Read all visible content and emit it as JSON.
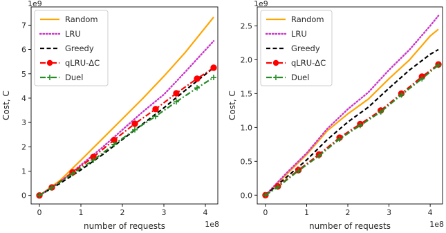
{
  "chart_data": [
    {
      "type": "line",
      "exponent_y": "1e9",
      "exponent_x": "1e8",
      "xlabel": "number of requests",
      "ylabel": "Cost, C",
      "xlim": [
        -0.2,
        4.3
      ],
      "ylim": [
        -0.35,
        7.75
      ],
      "xticks": [
        0,
        1,
        2,
        3,
        4
      ],
      "yticks": [
        0,
        1,
        2,
        3,
        4,
        5,
        6,
        7
      ],
      "legend_position": "top-left",
      "series": [
        {
          "name": "Random",
          "color": "#FFA500",
          "style": "solid",
          "marker": "none",
          "x": [
            0,
            0.5,
            1.0,
            1.5,
            2.0,
            2.5,
            3.0,
            3.5,
            4.2
          ],
          "y": [
            0,
            0.62,
            1.45,
            2.3,
            3.15,
            4.0,
            4.9,
            5.85,
            7.33
          ]
        },
        {
          "name": "LRU",
          "color": "#CC33CC",
          "style": "dotted",
          "marker": "none",
          "x": [
            0,
            0.5,
            1.0,
            1.5,
            2.0,
            2.5,
            3.0,
            3.5,
            4.2
          ],
          "y": [
            0,
            0.55,
            1.25,
            1.95,
            2.7,
            3.45,
            4.15,
            5.05,
            6.35
          ]
        },
        {
          "name": "Greedy",
          "color": "#000000",
          "style": "dashed",
          "marker": "none",
          "x": [
            0,
            0.5,
            1.0,
            1.5,
            2.0,
            2.5,
            3.0,
            3.5,
            4.2
          ],
          "y": [
            0,
            0.5,
            1.05,
            1.65,
            2.3,
            2.95,
            3.6,
            4.3,
            5.25
          ]
        },
        {
          "name": "qLRU-ΔC",
          "color": "#FF0000",
          "style": "dashdot",
          "marker": "circle",
          "x": [
            0,
            0.3,
            0.8,
            1.3,
            1.8,
            2.3,
            2.8,
            3.3,
            3.8,
            4.2
          ],
          "y": [
            0,
            0.33,
            0.95,
            1.58,
            2.28,
            2.95,
            3.55,
            4.2,
            4.8,
            5.25
          ]
        },
        {
          "name": "Duel",
          "color": "#228B22",
          "style": "dashdot",
          "marker": "plus",
          "x": [
            0,
            0.3,
            0.8,
            1.3,
            1.8,
            2.3,
            2.8,
            3.3,
            3.8,
            4.2
          ],
          "y": [
            0,
            0.32,
            0.9,
            1.45,
            2.1,
            2.7,
            3.25,
            3.85,
            4.42,
            4.85
          ]
        }
      ]
    },
    {
      "type": "line",
      "exponent_y": "1e9",
      "exponent_x": "1e8",
      "xlabel": "number of requests",
      "ylabel": "Cost, C",
      "xlim": [
        -0.2,
        4.3
      ],
      "ylim": [
        -0.13,
        2.78
      ],
      "xticks": [
        0,
        1,
        2,
        3,
        4
      ],
      "yticks": [
        0.0,
        0.5,
        1.0,
        1.5,
        2.0,
        2.5
      ],
      "ytick_labels": [
        "0.0",
        "0.5",
        "1.0",
        "1.5",
        "2.0",
        "2.5"
      ],
      "legend_position": "top-left",
      "series": [
        {
          "name": "Random",
          "color": "#FFA500",
          "style": "solid",
          "marker": "none",
          "x": [
            0,
            0.5,
            1.0,
            1.5,
            2.0,
            2.5,
            3.0,
            3.5,
            4.0,
            4.2
          ],
          "y": [
            0,
            0.3,
            0.6,
            0.95,
            1.2,
            1.42,
            1.72,
            2.0,
            2.35,
            2.45
          ]
        },
        {
          "name": "LRU",
          "color": "#CC33CC",
          "style": "dotted",
          "marker": "none",
          "x": [
            0,
            0.5,
            1.0,
            1.5,
            2.0,
            2.5,
            3.0,
            3.5,
            4.0,
            4.2
          ],
          "y": [
            0,
            0.32,
            0.62,
            0.98,
            1.27,
            1.52,
            1.85,
            2.15,
            2.5,
            2.65
          ]
        },
        {
          "name": "Greedy",
          "color": "#000000",
          "style": "dashed",
          "marker": "none",
          "x": [
            0,
            0.5,
            1.0,
            1.5,
            2.0,
            2.5,
            3.0,
            3.5,
            4.0,
            4.2
          ],
          "y": [
            0,
            0.26,
            0.52,
            0.82,
            1.08,
            1.3,
            1.58,
            1.85,
            2.08,
            2.15
          ]
        },
        {
          "name": "qLRU-ΔC",
          "color": "#FF0000",
          "style": "dashdot",
          "marker": "circle",
          "x": [
            0,
            0.3,
            0.8,
            1.3,
            1.8,
            2.3,
            2.8,
            3.3,
            3.8,
            4.2
          ],
          "y": [
            0,
            0.13,
            0.37,
            0.6,
            0.85,
            1.05,
            1.25,
            1.5,
            1.75,
            1.93
          ]
        },
        {
          "name": "Duel",
          "color": "#228B22",
          "style": "dashdot",
          "marker": "plus",
          "x": [
            0,
            0.3,
            0.8,
            1.3,
            1.8,
            2.3,
            2.8,
            3.3,
            3.8,
            4.2
          ],
          "y": [
            0,
            0.12,
            0.36,
            0.58,
            0.83,
            1.03,
            1.23,
            1.48,
            1.72,
            1.92
          ]
        }
      ]
    }
  ]
}
